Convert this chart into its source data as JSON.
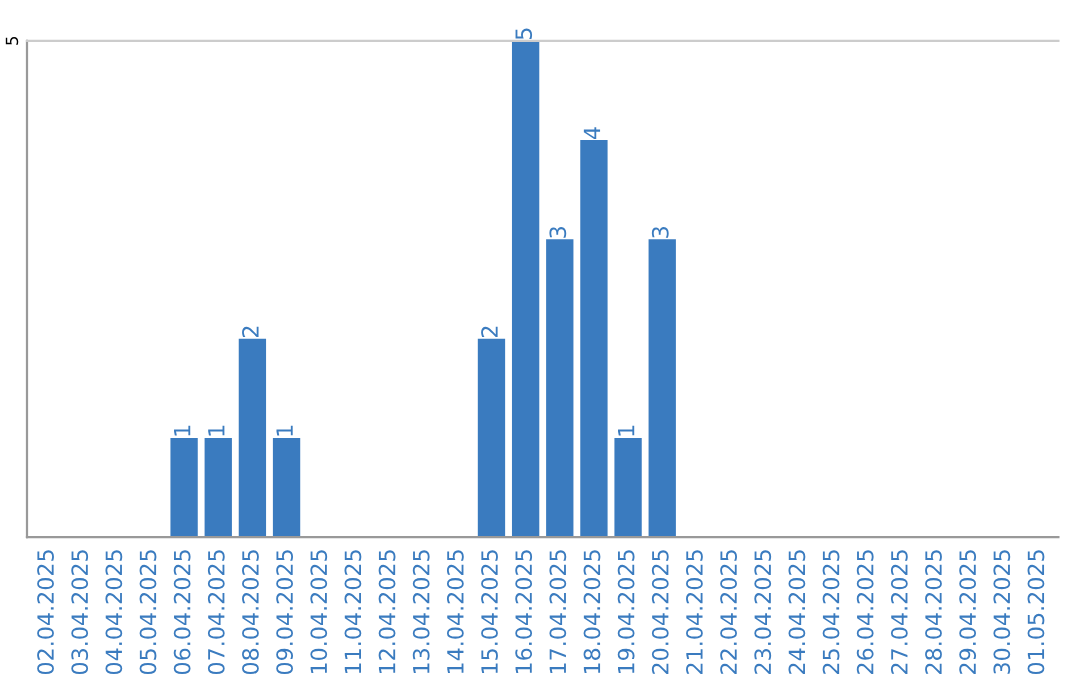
{
  "chart_data": {
    "type": "bar",
    "categories": [
      "02.04.2025",
      "03.04.2025",
      "04.04.2025",
      "05.04.2025",
      "06.04.2025",
      "07.04.2025",
      "08.04.2025",
      "09.04.2025",
      "10.04.2025",
      "11.04.2025",
      "12.04.2025",
      "13.04.2025",
      "14.04.2025",
      "15.04.2025",
      "16.04.2025",
      "17.04.2025",
      "18.04.2025",
      "19.04.2025",
      "20.04.2025",
      "21.04.2025",
      "22.04.2025",
      "23.04.2025",
      "24.04.2025",
      "25.04.2025",
      "26.04.2025",
      "27.04.2025",
      "28.04.2025",
      "29.04.2025",
      "30.04.2025",
      "01.05.2025"
    ],
    "values": [
      0,
      0,
      0,
      0,
      1,
      1,
      2,
      1,
      0,
      0,
      0,
      0,
      0,
      2,
      5,
      3,
      4,
      1,
      3,
      0,
      0,
      0,
      0,
      0,
      0,
      0,
      0,
      0,
      0,
      0
    ],
    "value_labels": [
      null,
      null,
      null,
      null,
      "1",
      "1",
      "2",
      "1",
      null,
      null,
      null,
      null,
      null,
      "2",
      "5",
      "3",
      "4",
      "1",
      "3",
      null,
      null,
      null,
      null,
      null,
      null,
      null,
      null,
      null,
      null,
      null
    ],
    "color": "#3a7bbf",
    "ylim": [
      0,
      5
    ],
    "yticks": [
      5
    ],
    "legend": false
  }
}
